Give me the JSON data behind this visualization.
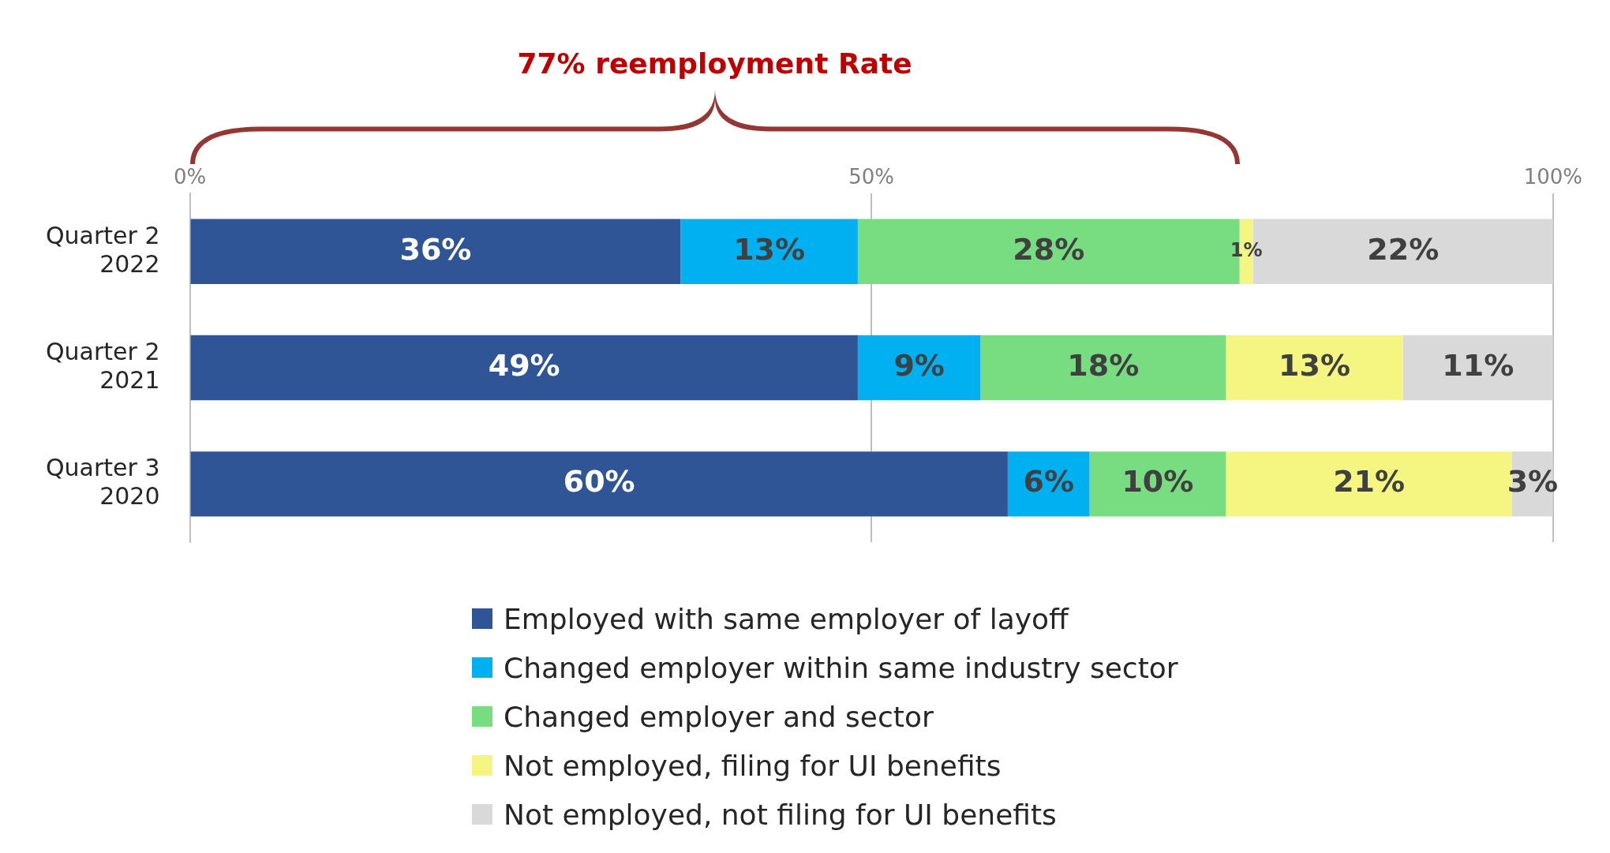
{
  "chart_data": {
    "type": "bar",
    "orientation": "horizontal",
    "stacked": true,
    "categories": [
      "Quarter 2 2022",
      "Quarter 2 2021",
      "Quarter 3 2020"
    ],
    "series": [
      {
        "name": "Employed with same employer of layoff",
        "color": "#2f5597",
        "values": [
          36,
          49,
          60
        ],
        "value_labels": [
          "36%",
          "49%",
          "60%"
        ]
      },
      {
        "name": "Changed employer within same industry sector",
        "color": "#00b0f0",
        "values": [
          13,
          9,
          6
        ],
        "value_labels": [
          "13%",
          "9%",
          "6%"
        ]
      },
      {
        "name": "Changed employer and sector",
        "color": "#77dd80",
        "values": [
          28,
          18,
          10
        ],
        "value_labels": [
          "28%",
          "18%",
          "10%"
        ]
      },
      {
        "name": "Not employed, filing for UI benefits",
        "color": "#f5f582",
        "values": [
          1,
          13,
          21
        ],
        "value_labels": [
          "1%",
          "13%",
          "21%"
        ]
      },
      {
        "name": "Not employed, not filing for UI benefits",
        "color": "#d9d9d9",
        "values": [
          22,
          11,
          3
        ],
        "value_labels": [
          "22%",
          "11%",
          "3%"
        ]
      }
    ],
    "xlim": [
      0,
      100
    ],
    "xticks": [
      {
        "value": 0,
        "label": "0%"
      },
      {
        "value": 50,
        "label": "50%"
      },
      {
        "value": 100,
        "label": "100%"
      }
    ],
    "grid": "x",
    "legend": "bottom",
    "annotations": [
      "77% reemployment Rate"
    ]
  }
}
